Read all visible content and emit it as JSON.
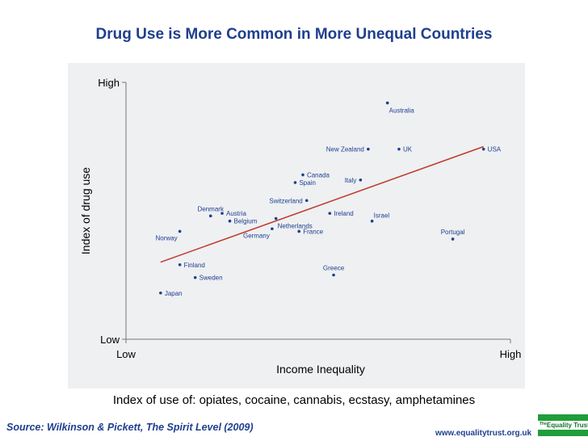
{
  "title": "Drug Use is More Common in More Unequal Countries",
  "subtitle": "Index of use of: opiates, cocaine, cannabis, ecstasy, amphetamines",
  "source": "Source: Wilkinson & Pickett, The Spirit Level (2009)",
  "website": "www.equalitytrust.org.uk",
  "logo": {
    "prefix": "The",
    "name": "Equality Trust"
  },
  "colors": {
    "title": "#1f3f8f",
    "trend_line": "#c0392b",
    "point": "#1f3f8f",
    "panel": "#eef0f2",
    "logo_green": "#1f9e3a"
  },
  "chart_data": {
    "type": "scatter",
    "title": "Drug Use is More Common in More Unequal Countries",
    "xlabel": "Income Inequality",
    "ylabel": "Index of drug use",
    "xlim": [
      0,
      100
    ],
    "ylim": [
      0,
      100
    ],
    "x_ticks": [
      {
        "value": 0,
        "label": "Low"
      },
      {
        "value": 100,
        "label": "High"
      }
    ],
    "y_ticks": [
      {
        "value": 0,
        "label": "Low"
      },
      {
        "value": 100,
        "label": "High"
      }
    ],
    "grid": false,
    "points": [
      {
        "label": "Australia",
        "x": 68,
        "y": 92,
        "label_side": "right-below"
      },
      {
        "label": "New Zealand",
        "x": 63,
        "y": 74,
        "label_side": "left"
      },
      {
        "label": "UK",
        "x": 71,
        "y": 74,
        "label_side": "right"
      },
      {
        "label": "USA",
        "x": 93,
        "y": 74,
        "label_side": "right"
      },
      {
        "label": "Canada",
        "x": 46,
        "y": 64,
        "label_side": "right"
      },
      {
        "label": "Spain",
        "x": 44,
        "y": 61,
        "label_side": "right"
      },
      {
        "label": "Italy",
        "x": 61,
        "y": 62,
        "label_side": "left"
      },
      {
        "label": "Switzerland",
        "x": 47,
        "y": 54,
        "label_side": "left"
      },
      {
        "label": "Denmark",
        "x": 22,
        "y": 48,
        "label_side": "above"
      },
      {
        "label": "Austria",
        "x": 25,
        "y": 49,
        "label_side": "right"
      },
      {
        "label": "Belgium",
        "x": 27,
        "y": 46,
        "label_side": "right"
      },
      {
        "label": "Ireland",
        "x": 53,
        "y": 49,
        "label_side": "right"
      },
      {
        "label": "Israel",
        "x": 64,
        "y": 46,
        "label_side": "right-above"
      },
      {
        "label": "Netherlands",
        "x": 39,
        "y": 47,
        "label_side": "right-below"
      },
      {
        "label": "Norway",
        "x": 14,
        "y": 42,
        "label_side": "left-below"
      },
      {
        "label": "Germany",
        "x": 38,
        "y": 43,
        "label_side": "left-below"
      },
      {
        "label": "France",
        "x": 45,
        "y": 42,
        "label_side": "right"
      },
      {
        "label": "Portugal",
        "x": 85,
        "y": 39,
        "label_side": "above"
      },
      {
        "label": "Finland",
        "x": 14,
        "y": 29,
        "label_side": "right"
      },
      {
        "label": "Greece",
        "x": 54,
        "y": 25,
        "label_side": "above"
      },
      {
        "label": "Sweden",
        "x": 18,
        "y": 24,
        "label_side": "right"
      },
      {
        "label": "Japan",
        "x": 9,
        "y": 18,
        "label_side": "right"
      }
    ],
    "trend_line": {
      "x": [
        9,
        93
      ],
      "y": [
        30,
        75
      ]
    }
  }
}
